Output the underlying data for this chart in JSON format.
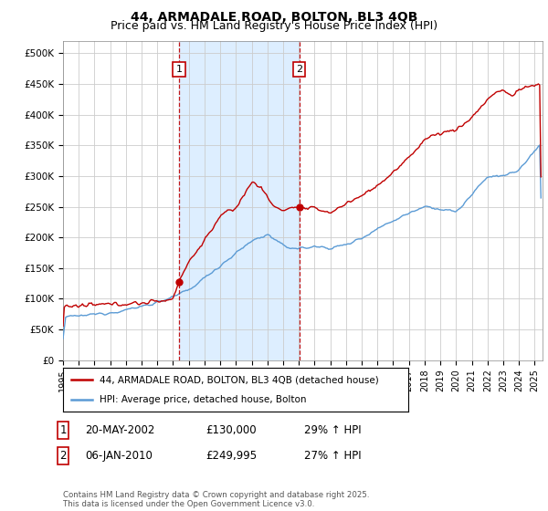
{
  "title": "44, ARMADALE ROAD, BOLTON, BL3 4QB",
  "subtitle": "Price paid vs. HM Land Registry's House Price Index (HPI)",
  "ylim": [
    0,
    520000
  ],
  "yticks": [
    0,
    50000,
    100000,
    150000,
    200000,
    250000,
    300000,
    350000,
    400000,
    450000,
    500000
  ],
  "ytick_labels": [
    "£0",
    "£50K",
    "£100K",
    "£150K",
    "£200K",
    "£250K",
    "£300K",
    "£350K",
    "£400K",
    "£450K",
    "£500K"
  ],
  "xlim_start": 1995.0,
  "xlim_end": 2025.5,
  "hpi_color": "#5b9bd5",
  "price_color": "#c00000",
  "vline_color": "#c00000",
  "shade_color": "#ddeeff",
  "background_color": "#ffffff",
  "grid_color": "#cccccc",
  "marker1_date": 2002.38,
  "marker2_date": 2010.02,
  "marker1_price": 130000,
  "marker2_price": 249995,
  "legend_price_label": "44, ARMADALE ROAD, BOLTON, BL3 4QB (detached house)",
  "legend_hpi_label": "HPI: Average price, detached house, Bolton",
  "table_row1": [
    "1",
    "20-MAY-2002",
    "£130,000",
    "29% ↑ HPI"
  ],
  "table_row2": [
    "2",
    "06-JAN-2010",
    "£249,995",
    "27% ↑ HPI"
  ],
  "footer": "Contains HM Land Registry data © Crown copyright and database right 2025.\nThis data is licensed under the Open Government Licence v3.0.",
  "title_fontsize": 10,
  "subtitle_fontsize": 9
}
